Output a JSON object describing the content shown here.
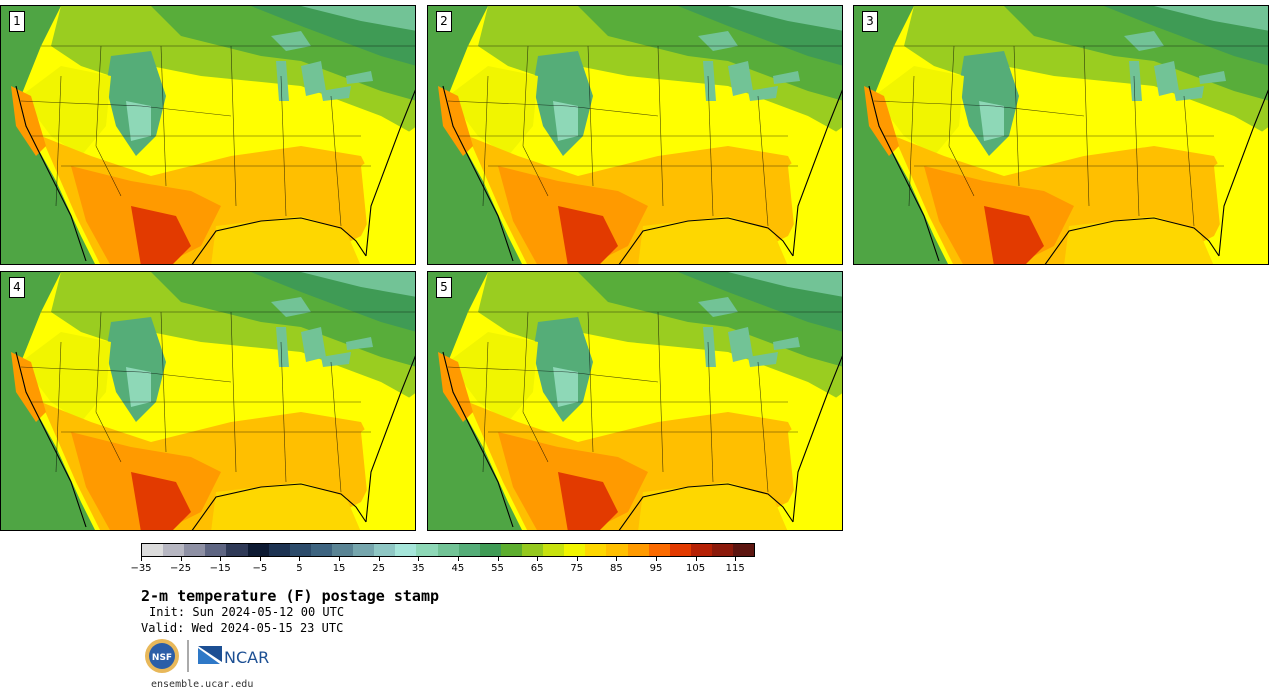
{
  "panels": [
    {
      "label": "1"
    },
    {
      "label": "2"
    },
    {
      "label": "3"
    },
    {
      "label": "4"
    },
    {
      "label": "5"
    }
  ],
  "colorbar": {
    "colors": [
      "#dcdcdc",
      "#b7b7c2",
      "#8e90a4",
      "#5e6582",
      "#2f3a57",
      "#0e1b33",
      "#1d3352",
      "#2c4b6a",
      "#3e6480",
      "#5a8494",
      "#76a6ad",
      "#8fc7c4",
      "#a6e6da",
      "#8ed8b7",
      "#72c396",
      "#55ad78",
      "#3f9b55",
      "#5dae2f",
      "#95c91f",
      "#c8e20f",
      "#f1f500",
      "#fed700",
      "#ffbf00",
      "#ff9a00",
      "#fb6a00",
      "#e23a00",
      "#b52105",
      "#8b1a0b",
      "#5c1510"
    ],
    "tick_labels": [
      "−35",
      "−25",
      "−15",
      "−5",
      "5",
      "15",
      "25",
      "35",
      "45",
      "55",
      "65",
      "75",
      "85",
      "95",
      "105",
      "115"
    ]
  },
  "title": "2-m temperature (F) postage stamp",
  "init": "Init: Sun 2024-05-12 00 UTC",
  "valid": "Valid: Wed 2024-05-15 23 UTC",
  "logos": {
    "nsf": "NSF",
    "ncar": "NCAR"
  },
  "url": "ensemble.ucar.edu"
}
